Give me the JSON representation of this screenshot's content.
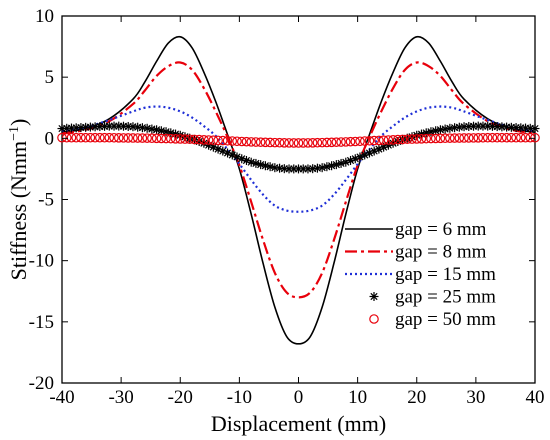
{
  "chart_data": {
    "type": "line",
    "xlabel": "Displacement (mm)",
    "ylabel": "Stiffness (Nmm",
    "ylabel_sup": "−1",
    "ylabel_close": ")",
    "xlim": [
      -40,
      40
    ],
    "ylim": [
      -20,
      10
    ],
    "xticks": [
      -40,
      -30,
      -20,
      -10,
      0,
      10,
      20,
      30,
      40
    ],
    "xtick_labels": [
      "-40",
      "-30",
      "-20",
      "-10",
      "0",
      "10",
      "20",
      "30",
      "40"
    ],
    "yticks": [
      -20,
      -15,
      -10,
      -5,
      0,
      5,
      10
    ],
    "ytick_labels": [
      "-20",
      "-15",
      "-10",
      "-5",
      "0",
      "5",
      "10"
    ],
    "grid": false,
    "legend_position": "bottom-right",
    "series": [
      {
        "name": "gap = 6 mm",
        "color": "#000000",
        "style": "solid",
        "x": [
          -40,
          -36,
          -32,
          -28,
          -26,
          -24,
          -22,
          -20,
          -18,
          -16,
          -14,
          -12,
          -10,
          -8,
          -6,
          -4,
          -2,
          0,
          2,
          4,
          6,
          8,
          10,
          12,
          14,
          16,
          18,
          20,
          22,
          24,
          26,
          28,
          32,
          36,
          40
        ],
        "y": [
          0.5,
          0.8,
          1.6,
          3.2,
          4.6,
          6.3,
          7.8,
          8.3,
          7.4,
          5.4,
          3.0,
          0.3,
          -2.5,
          -6.2,
          -10.2,
          -13.8,
          -16.2,
          -16.8,
          -16.2,
          -13.8,
          -10.2,
          -6.2,
          -2.5,
          0.3,
          3.0,
          5.4,
          7.4,
          8.3,
          7.8,
          6.3,
          4.6,
          3.2,
          1.6,
          0.8,
          0.5
        ]
      },
      {
        "name": "gap = 8 mm",
        "color": "#e8000b",
        "style": "dashdot",
        "x": [
          -40,
          -36,
          -32,
          -28,
          -26,
          -24,
          -22,
          -20,
          -18,
          -16,
          -14,
          -12,
          -10,
          -8,
          -6,
          -4,
          -2,
          0,
          2,
          4,
          6,
          8,
          10,
          12,
          14,
          16,
          18,
          20,
          22,
          24,
          26,
          28,
          32,
          36,
          40
        ],
        "y": [
          0.4,
          0.7,
          1.4,
          2.8,
          3.9,
          5.1,
          5.9,
          6.2,
          5.6,
          4.1,
          2.2,
          0.1,
          -2.2,
          -5.2,
          -8.3,
          -11.0,
          -12.6,
          -13.0,
          -12.6,
          -11.0,
          -8.3,
          -5.2,
          -2.2,
          0.1,
          2.2,
          4.1,
          5.6,
          6.2,
          5.9,
          5.1,
          3.9,
          2.8,
          1.4,
          0.7,
          0.4
        ]
      },
      {
        "name": "gap = 15 mm",
        "color": "#1f2fd6",
        "style": "dotted",
        "x": [
          -40,
          -36,
          -32,
          -28,
          -26,
          -24,
          -22,
          -20,
          -18,
          -16,
          -14,
          -12,
          -10,
          -8,
          -6,
          -4,
          -2,
          0,
          2,
          4,
          6,
          8,
          10,
          12,
          14,
          16,
          18,
          20,
          22,
          24,
          26,
          28,
          32,
          36,
          40
        ],
        "y": [
          0.6,
          0.9,
          1.5,
          2.2,
          2.5,
          2.6,
          2.5,
          2.2,
          1.7,
          1.0,
          0.2,
          -0.9,
          -2.1,
          -3.4,
          -4.6,
          -5.5,
          -5.9,
          -6.0,
          -5.9,
          -5.5,
          -4.6,
          -3.4,
          -2.1,
          -0.9,
          0.2,
          1.0,
          1.7,
          2.2,
          2.5,
          2.6,
          2.5,
          2.2,
          1.5,
          0.9,
          0.6
        ]
      },
      {
        "name": "gap = 25 mm",
        "color": "#000000",
        "style": "marker-star",
        "x": [
          -40,
          -38,
          -36,
          -34,
          -32,
          -30,
          -28,
          -26,
          -24,
          -22,
          -20,
          -18,
          -16,
          -14,
          -12,
          -10,
          -8,
          -6,
          -4,
          -2,
          0,
          2,
          4,
          6,
          8,
          10,
          12,
          14,
          16,
          18,
          20,
          22,
          24,
          26,
          28,
          30,
          32,
          34,
          36,
          38,
          40
        ],
        "y": [
          0.8,
          0.85,
          0.9,
          0.95,
          1.0,
          1.0,
          0.95,
          0.85,
          0.7,
          0.5,
          0.25,
          -0.05,
          -0.4,
          -0.8,
          -1.2,
          -1.6,
          -1.95,
          -2.2,
          -2.4,
          -2.5,
          -2.5,
          -2.5,
          -2.4,
          -2.2,
          -1.95,
          -1.6,
          -1.2,
          -0.8,
          -0.4,
          -0.05,
          0.25,
          0.5,
          0.7,
          0.85,
          0.95,
          1.0,
          1.0,
          0.95,
          0.9,
          0.85,
          0.8
        ]
      },
      {
        "name": "gap = 50 mm",
        "color": "#e8000b",
        "style": "marker-circle",
        "x": [
          -40,
          -38,
          -36,
          -34,
          -32,
          -30,
          -28,
          -26,
          -24,
          -22,
          -20,
          -18,
          -16,
          -14,
          -12,
          -10,
          -8,
          -6,
          -4,
          -2,
          0,
          2,
          4,
          6,
          8,
          10,
          12,
          14,
          16,
          18,
          20,
          22,
          24,
          26,
          28,
          30,
          32,
          34,
          36,
          38,
          40
        ],
        "y": [
          0.05,
          0.05,
          0.05,
          0.05,
          0.05,
          0.04,
          0.03,
          0.02,
          0.0,
          -0.02,
          -0.05,
          -0.08,
          -0.12,
          -0.16,
          -0.2,
          -0.25,
          -0.29,
          -0.32,
          -0.35,
          -0.37,
          -0.38,
          -0.37,
          -0.35,
          -0.32,
          -0.29,
          -0.25,
          -0.2,
          -0.16,
          -0.12,
          -0.08,
          -0.05,
          -0.02,
          0.0,
          0.02,
          0.03,
          0.04,
          0.05,
          0.05,
          0.05,
          0.05,
          0.05
        ]
      }
    ]
  }
}
